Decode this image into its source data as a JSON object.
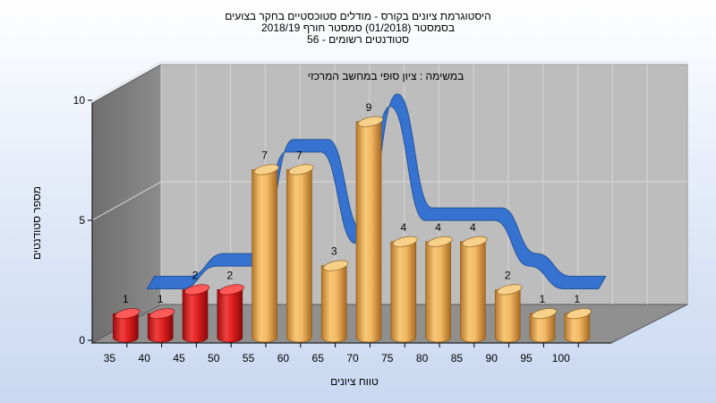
{
  "chart_data": {
    "type": "bar",
    "title_lines": [
      "היסטוגרמת ציונים בקורס - מודלים סטוכסטיים בחקר בצועים",
      "בסמסטר  (01/2018)  סמסטר חורף 2018/19",
      "סטודנטים רשומים - 56"
    ],
    "subtitle": "במשימה : ציון סופי במחשב המרכזי",
    "xlabel": "טווח ציונים",
    "ylabel": "מספר סטודנטים",
    "categories": [
      "35",
      "40",
      "45",
      "50",
      "55",
      "60",
      "65",
      "70",
      "75",
      "80",
      "85",
      "90",
      "95",
      "100"
    ],
    "values": [
      1,
      1,
      2,
      2,
      7,
      7,
      3,
      9,
      4,
      4,
      4,
      2,
      1,
      1
    ],
    "bar_colors": [
      "#d81818",
      "#d81818",
      "#d81818",
      "#d81818",
      "#e8a84a",
      "#e8a84a",
      "#e8a84a",
      "#e8a84a",
      "#e8a84a",
      "#e8a84a",
      "#e8a84a",
      "#e8a84a",
      "#e8a84a",
      "#e8a84a"
    ],
    "y_ticks": [
      0,
      5,
      10
    ],
    "ylim": [
      0,
      10
    ],
    "curve_color": "#2f6fd0",
    "grid": true,
    "legend": false
  }
}
